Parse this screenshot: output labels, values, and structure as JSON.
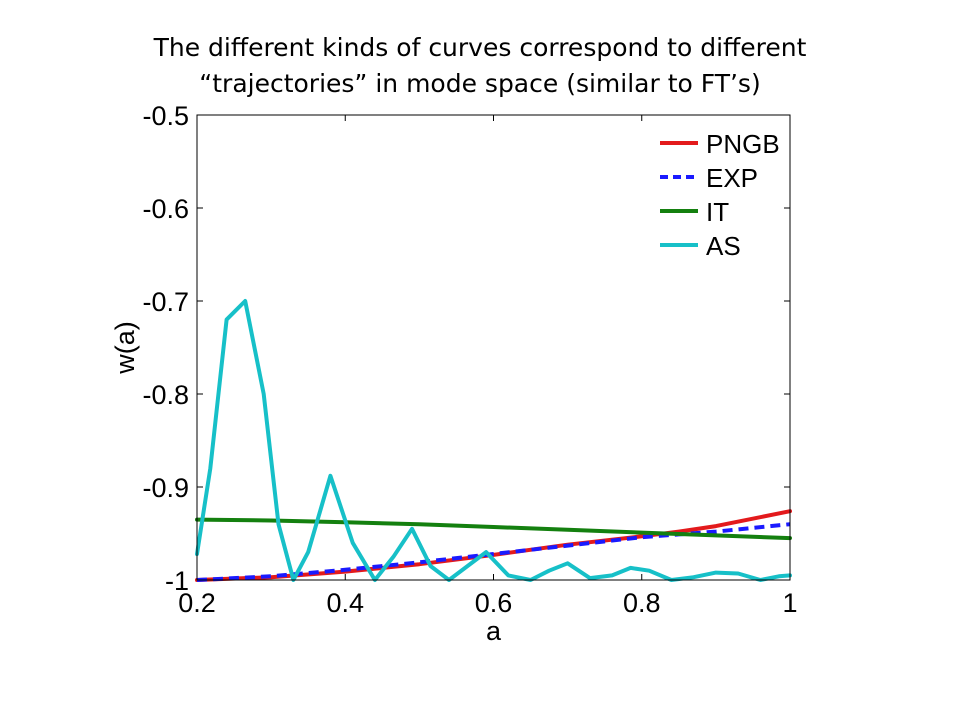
{
  "slide": {
    "title_line1": "The different kinds of curves correspond to different",
    "title_line2": "“trajectories” in mode space (similar to FT’s)"
  },
  "chart_data": {
    "type": "line",
    "xlabel": "a",
    "ylabel": "w(a)",
    "xlim": [
      0.2,
      1
    ],
    "ylim": [
      -1,
      -0.5
    ],
    "xticks": [
      "0.2",
      "0.4",
      "0.6",
      "0.8",
      "1"
    ],
    "yticks": [
      "-0.5",
      "-0.6",
      "-0.7",
      "-0.8",
      "-0.9",
      "-1"
    ],
    "grid": false,
    "legend_position": "top-right",
    "series": [
      {
        "name": "PNGB",
        "color": "#e31a1c",
        "dash": "solid",
        "x": [
          0.2,
          0.3,
          0.4,
          0.5,
          0.6,
          0.7,
          0.8,
          0.85,
          0.9,
          1.0
        ],
        "y": [
          -1.0,
          -0.997,
          -0.991,
          -0.983,
          -0.973,
          -0.962,
          -0.953,
          -0.948,
          -0.942,
          -0.926
        ]
      },
      {
        "name": "EXP",
        "color": "#1a1aff",
        "dash": "dashed",
        "x": [
          0.2,
          0.3,
          0.4,
          0.5,
          0.6,
          0.7,
          0.8,
          0.85,
          0.9,
          1.0
        ],
        "y": [
          -1.0,
          -0.996,
          -0.989,
          -0.981,
          -0.972,
          -0.963,
          -0.954,
          -0.951,
          -0.948,
          -0.94
        ]
      },
      {
        "name": "IT",
        "color": "#14800f",
        "dash": "solid",
        "x": [
          0.2,
          0.3,
          0.4,
          0.5,
          0.6,
          0.7,
          0.8,
          0.9,
          1.0
        ],
        "y": [
          -0.935,
          -0.936,
          -0.938,
          -0.94,
          -0.943,
          -0.946,
          -0.949,
          -0.952,
          -0.955
        ]
      },
      {
        "name": "AS",
        "color": "#17c0c8",
        "dash": "solid",
        "x": [
          0.2,
          0.218,
          0.24,
          0.265,
          0.29,
          0.31,
          0.33,
          0.35,
          0.38,
          0.41,
          0.44,
          0.465,
          0.49,
          0.515,
          0.54,
          0.565,
          0.59,
          0.62,
          0.65,
          0.675,
          0.7,
          0.73,
          0.76,
          0.785,
          0.81,
          0.84,
          0.87,
          0.9,
          0.93,
          0.96,
          0.985,
          1.0
        ],
        "y": [
          -0.972,
          -0.88,
          -0.72,
          -0.7,
          -0.8,
          -0.94,
          -1.0,
          -0.97,
          -0.888,
          -0.96,
          -1.0,
          -0.975,
          -0.945,
          -0.985,
          -1.0,
          -0.985,
          -0.97,
          -0.995,
          -1.0,
          -0.99,
          -0.982,
          -0.998,
          -0.995,
          -0.987,
          -0.99,
          -1.0,
          -0.997,
          -0.992,
          -0.993,
          -1.0,
          -0.996,
          -0.995
        ]
      }
    ]
  }
}
